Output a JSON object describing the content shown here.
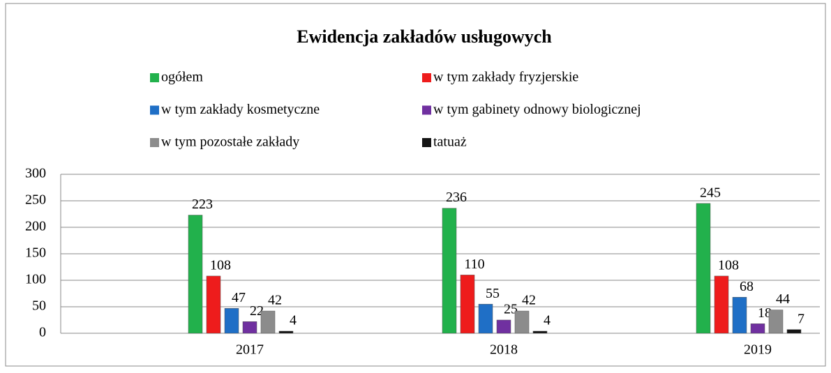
{
  "chart_data": {
    "type": "bar",
    "title": "Ewidencja zakładów usługowych",
    "categories": [
      "2017",
      "2018",
      "2019"
    ],
    "series": [
      {
        "name": "ogółem",
        "color": "#22b14c",
        "values": [
          223,
          236,
          245
        ]
      },
      {
        "name": "w tym zakłady fryzjerskie",
        "color": "#ee1c1c",
        "values": [
          108,
          110,
          108
        ]
      },
      {
        "name": "w tym zakłady kosmetyczne",
        "color": "#1f6fc6",
        "values": [
          47,
          55,
          68
        ]
      },
      {
        "name": "w tym gabinety odnowy biologicznej",
        "color": "#7030a0",
        "values": [
          22,
          25,
          18
        ]
      },
      {
        "name": "w tym pozostałe zakłady",
        "color": "#8c8c8c",
        "values": [
          42,
          42,
          44
        ]
      },
      {
        "name": "tatuaż",
        "color": "#151515",
        "values": [
          4,
          4,
          7
        ]
      }
    ],
    "ylim": [
      0,
      300
    ],
    "yticks": [
      0,
      50,
      100,
      150,
      200,
      250,
      300
    ],
    "grid": true,
    "legend": "top"
  }
}
